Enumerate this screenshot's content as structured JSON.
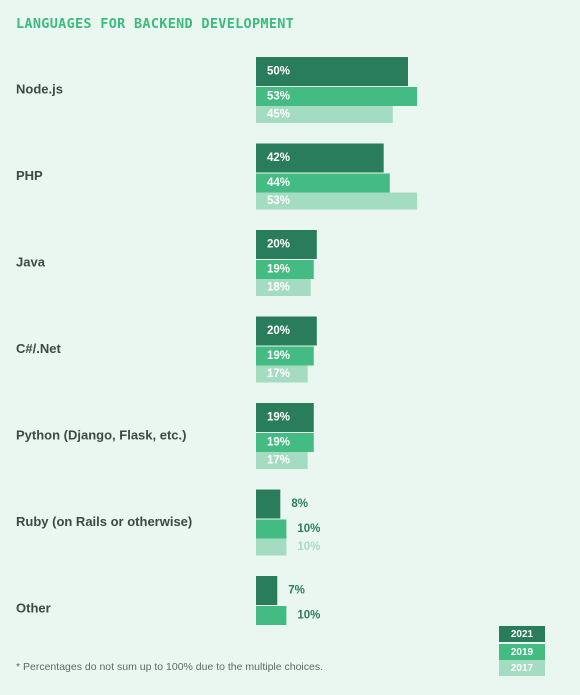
{
  "title": "LANGUAGES FOR BACKEND DEVELOPMENT",
  "footnote": "* Percentages do not sum up to 100% due to the multiple choices.",
  "colors": {
    "y2021": "#2a7d5a",
    "y2019": "#43bb83",
    "y2017": "#a4dcc1",
    "background": "#eaf7f0"
  },
  "legend": [
    "2021",
    "2019",
    "2017"
  ],
  "chart_data": {
    "type": "bar",
    "orientation": "horizontal",
    "categories": [
      "Node.js",
      "PHP",
      "Java",
      "C#/.Net",
      "Python (Django, Flask, etc.)",
      "Ruby (on Rails or otherwise)",
      "Other"
    ],
    "series": [
      {
        "name": "2021",
        "values": [
          50,
          42,
          20,
          20,
          19,
          8,
          7
        ],
        "labels": [
          "50%",
          "42%",
          "20%",
          "20%",
          "19%",
          "8%",
          "7%"
        ]
      },
      {
        "name": "2019",
        "values": [
          53,
          44,
          19,
          19,
          19,
          10,
          10
        ],
        "labels": [
          "53%",
          "44%",
          "19%",
          "19%",
          "19%",
          "10%",
          "10%"
        ]
      },
      {
        "name": "2017",
        "values": [
          45,
          53,
          18,
          17,
          17,
          10,
          null
        ],
        "labels": [
          "45%",
          "53%",
          "18%",
          "17%",
          "17%",
          "10%",
          null
        ]
      }
    ],
    "xlim": [
      0,
      100
    ],
    "legend_position": "bottom-right",
    "grid": false
  }
}
